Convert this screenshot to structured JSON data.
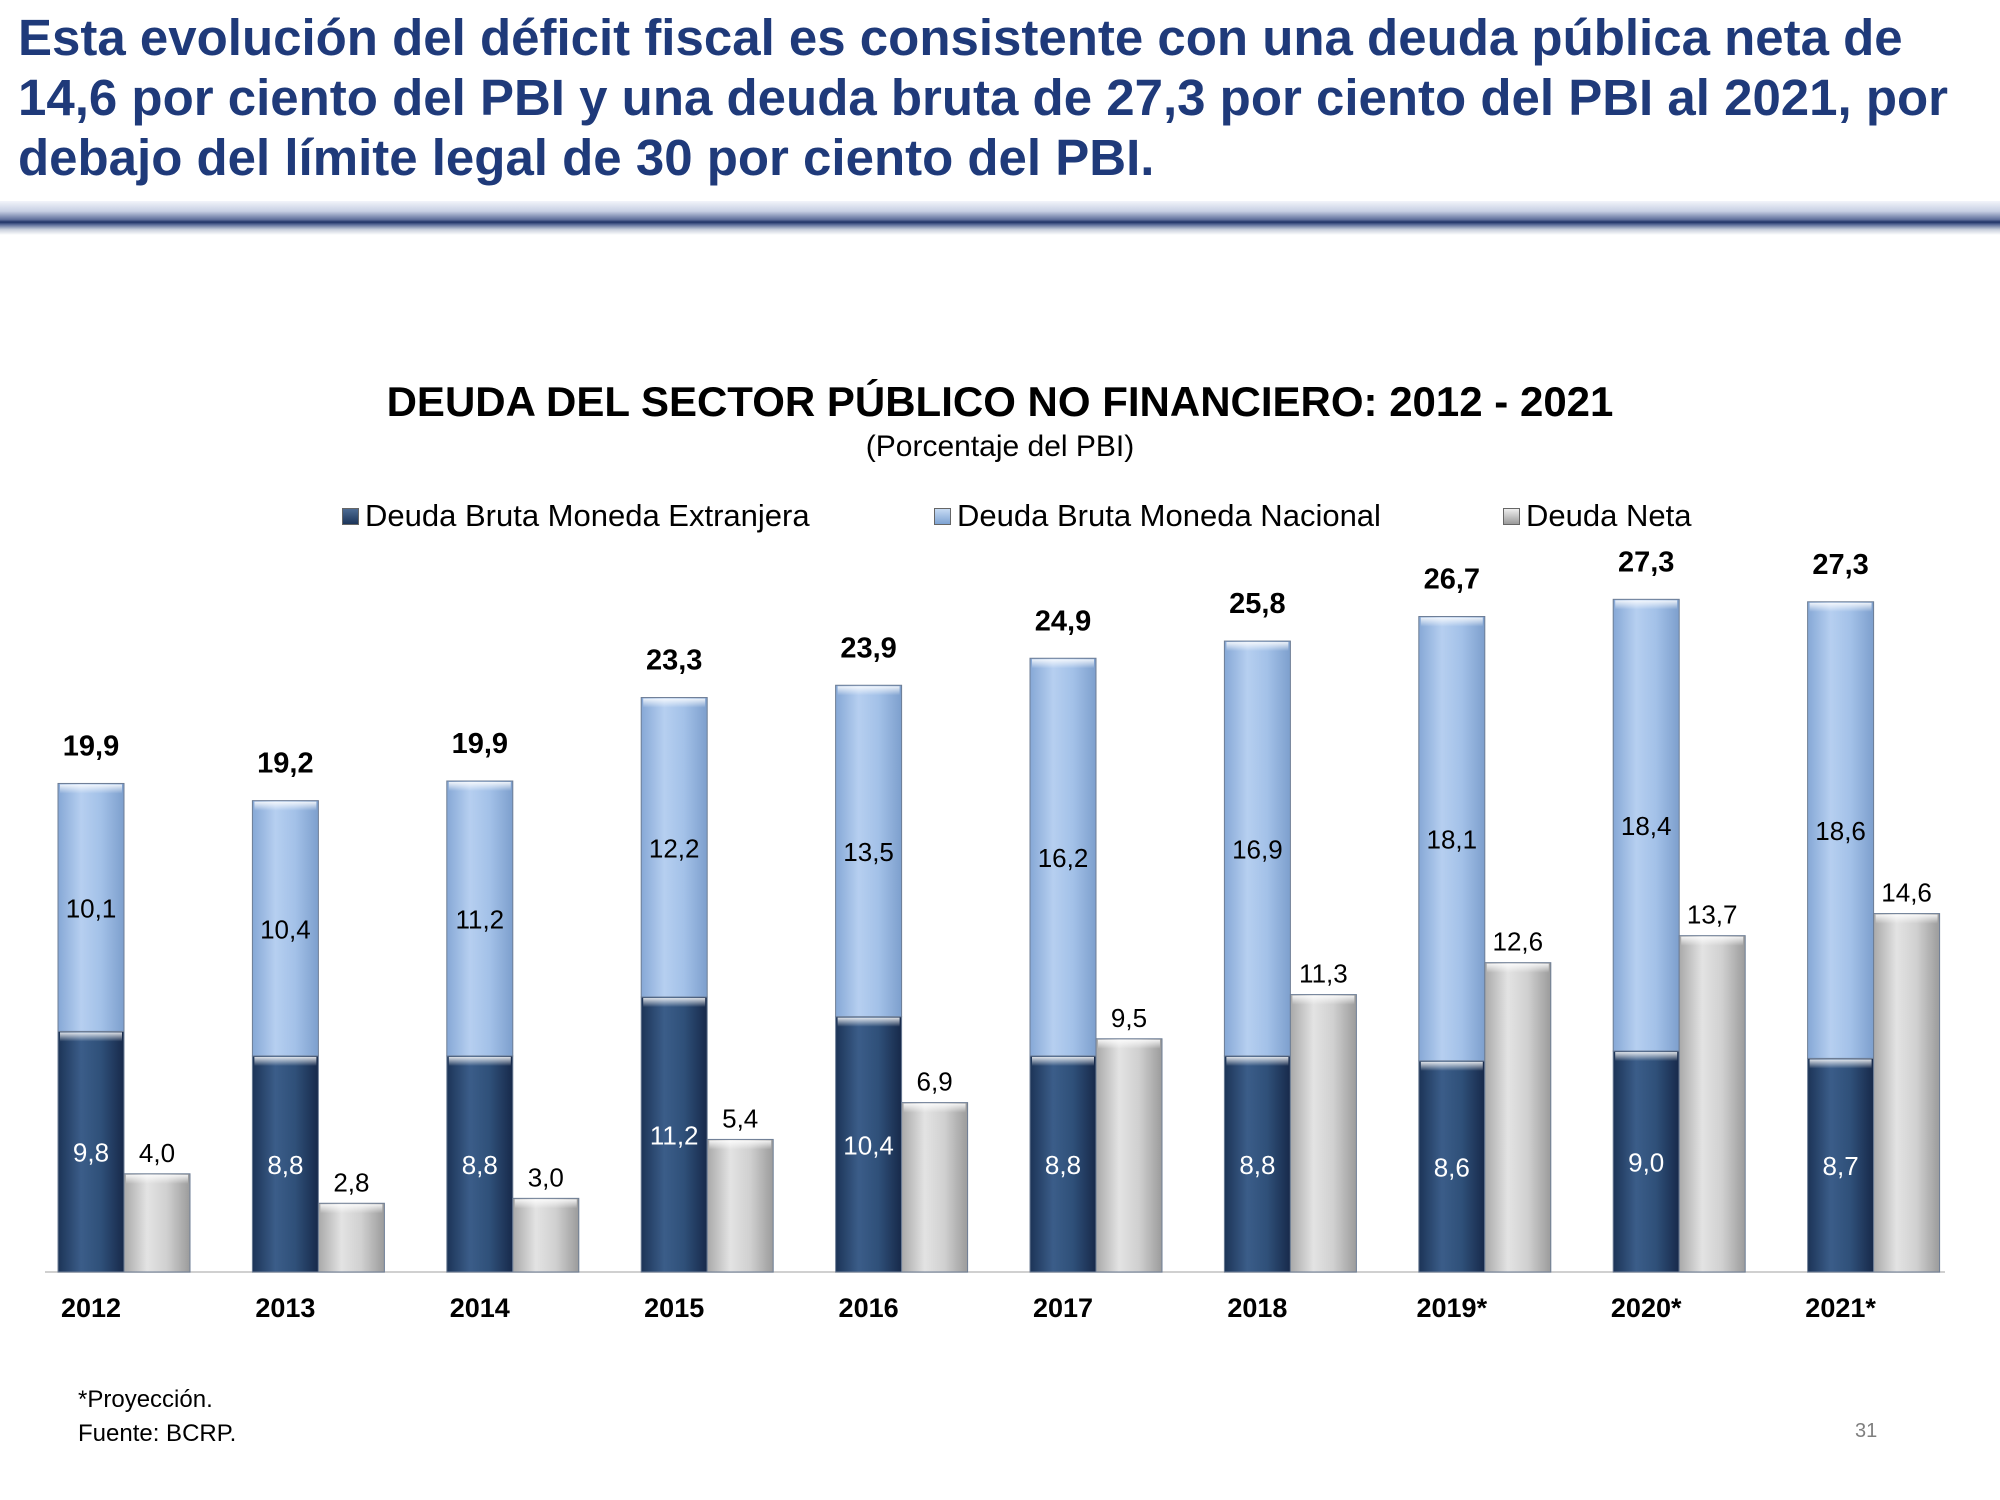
{
  "slide": {
    "title": "Esta evolución del déficit fiscal es consistente con una deuda pública neta de 14,6 por ciento del PBI y una deuda bruta de 27,3 por ciento del PBI al 2021, por debajo del límite legal de 30 por ciento del PBI.",
    "footnote_line1": "*Proyección.",
    "footnote_line2": "Fuente: BCRP.",
    "page_number": "31"
  },
  "colors": {
    "foreign": "#2b4b74",
    "domestic": "#9fbde4",
    "net": "#c8c8c8",
    "title": "#1f3a7a"
  },
  "chart_data": {
    "type": "bar",
    "stacked_series_plus_adjacent_bar": true,
    "title": "DEUDA DEL SECTOR PÚBLICO NO FINANCIERO: 2012 - 2021",
    "subtitle": "(Porcentaje del PBI)",
    "legend_position": "top",
    "grid": false,
    "ylim": [
      0,
      28
    ],
    "categories": [
      "2012",
      "2013",
      "2014",
      "2015",
      "2016",
      "2017",
      "2018",
      "2019*",
      "2020*",
      "2021*"
    ],
    "series": [
      {
        "name": "Deuda Bruta Moneda Extranjera",
        "stack": "bruta",
        "values": [
          9.8,
          8.8,
          8.8,
          11.2,
          10.4,
          8.8,
          8.8,
          8.6,
          9.0,
          8.7
        ],
        "labels": [
          "9,8",
          "8,8",
          "8,8",
          "11,2",
          "10,4",
          "8,8",
          "8,8",
          "8,6",
          "9,0",
          "8,7"
        ]
      },
      {
        "name": "Deuda Bruta Moneda Nacional",
        "stack": "bruta",
        "values": [
          10.1,
          10.4,
          11.2,
          12.2,
          13.5,
          16.2,
          16.9,
          18.1,
          18.4,
          18.6
        ],
        "labels": [
          "10,1",
          "10,4",
          "11,2",
          "12,2",
          "13,5",
          "16,2",
          "16,9",
          "18,1",
          "18,4",
          "18,6"
        ]
      },
      {
        "name": "Deuda Neta",
        "stack": "neta",
        "values": [
          4.0,
          2.8,
          3.0,
          5.4,
          6.9,
          9.5,
          11.3,
          12.6,
          13.7,
          14.6
        ],
        "labels": [
          "4,0",
          "2,8",
          "3,0",
          "5,4",
          "6,9",
          "9,5",
          "11,3",
          "12,6",
          "13,7",
          "14,6"
        ]
      }
    ],
    "totals": [
      19.9,
      19.2,
      19.9,
      23.3,
      23.9,
      24.9,
      25.8,
      26.7,
      27.3,
      27.3
    ],
    "total_labels": [
      "19,9",
      "19,2",
      "19,9",
      "23,3",
      "23,9",
      "24,9",
      "25,8",
      "26,7",
      "27,3",
      "27,3"
    ]
  }
}
